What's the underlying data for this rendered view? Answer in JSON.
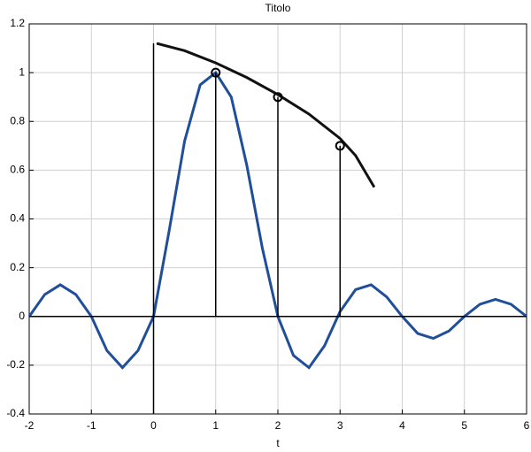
{
  "chart_data": {
    "type": "line",
    "title": "Titolo",
    "xlabel": "t",
    "xlim": [
      -2,
      6
    ],
    "ylim": [
      -0.4,
      1.2
    ],
    "xticks": [
      -2,
      -1,
      0,
      1,
      2,
      3,
      4,
      5,
      6
    ],
    "yticks": [
      -0.4,
      -0.2,
      0,
      0.2,
      0.4,
      0.6,
      0.8,
      1,
      1.2
    ],
    "grid": true,
    "series": [
      {
        "style": "line",
        "color": "#1f4e9a",
        "x": [
          -2,
          -1.75,
          -1.5,
          -1.25,
          -1,
          -0.75,
          -0.5,
          -0.25,
          0,
          0.25,
          0.5,
          0.75,
          1,
          1.25,
          1.5,
          1.75,
          2,
          2.25,
          2.5,
          2.75,
          3,
          3.25,
          3.5,
          3.75,
          4,
          4.25,
          4.5,
          4.75,
          5,
          5.25,
          5.5,
          5.75,
          6
        ],
        "values": [
          0,
          0.09,
          0.13,
          0.09,
          0,
          -0.14,
          -0.21,
          -0.14,
          0,
          0.35,
          0.72,
          0.95,
          1.0,
          0.9,
          0.62,
          0.28,
          0,
          -0.16,
          -0.21,
          -0.12,
          0.02,
          0.11,
          0.13,
          0.08,
          0,
          -0.07,
          -0.09,
          -0.06,
          0,
          0.05,
          0.07,
          0.05,
          0
        ]
      },
      {
        "style": "line",
        "color": "#111111",
        "x": [
          0.05,
          0.5,
          1,
          1.5,
          2,
          2.5,
          3,
          3.25,
          3.55
        ],
        "values": [
          1.12,
          1.09,
          1.04,
          0.98,
          0.91,
          0.83,
          0.73,
          0.66,
          0.53
        ]
      },
      {
        "style": "line",
        "color": "#000000",
        "x": [
          0,
          0
        ],
        "values": [
          -0.4,
          1.12
        ]
      },
      {
        "style": "stem",
        "color": "#000000",
        "x": [
          1,
          2,
          3
        ],
        "values": [
          1,
          0.9,
          0.7
        ]
      }
    ]
  }
}
